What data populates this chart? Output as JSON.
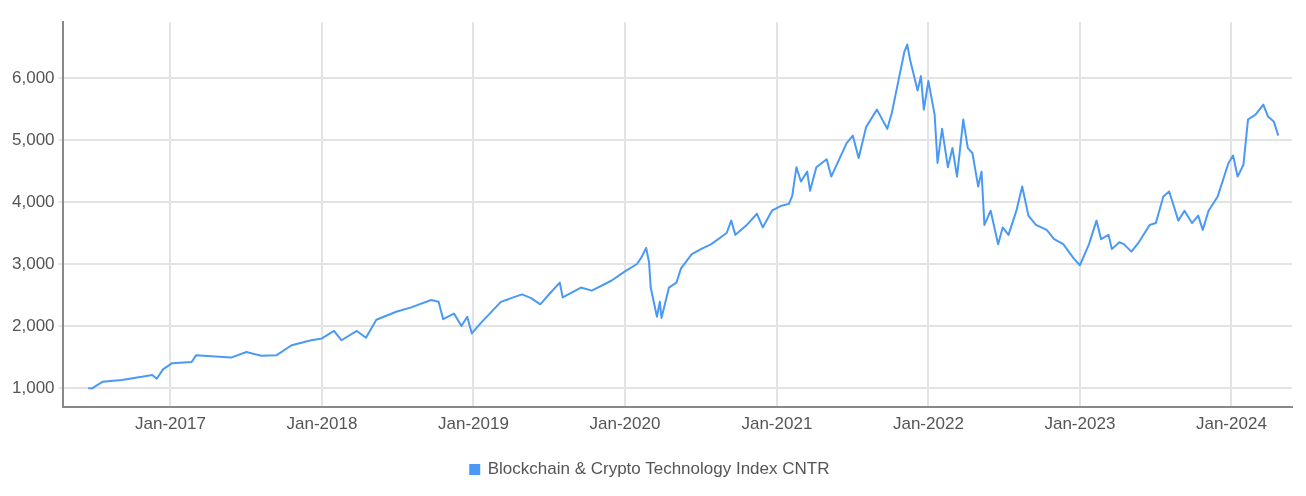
{
  "chart_data": {
    "type": "line",
    "legend": "bottom",
    "grid": true,
    "marker": "none",
    "line_style": "solid",
    "xlim": [
      "2016-04-16",
      "2024-05-26"
    ],
    "xticks": [
      {
        "value": "2017-01-01",
        "label": "Jan-2017"
      },
      {
        "value": "2018-01-01",
        "label": "Jan-2018"
      },
      {
        "value": "2019-01-01",
        "label": "Jan-2019"
      },
      {
        "value": "2020-01-01",
        "label": "Jan-2020"
      },
      {
        "value": "2021-01-01",
        "label": "Jan-2021"
      },
      {
        "value": "2022-01-01",
        "label": "Jan-2022"
      },
      {
        "value": "2023-01-01",
        "label": "Jan-2023"
      },
      {
        "value": "2024-01-01",
        "label": "Jan-2024"
      }
    ],
    "ylim": [
      700,
      6900
    ],
    "yticks": [
      {
        "value": 1000,
        "label": "1,000"
      },
      {
        "value": 2000,
        "label": "2,000"
      },
      {
        "value": 3000,
        "label": "3,000"
      },
      {
        "value": 4000,
        "label": "4,000"
      },
      {
        "value": 5000,
        "label": "5,000"
      },
      {
        "value": 6000,
        "label": "6,000"
      }
    ],
    "x": [
      "2016-06-17",
      "2016-06-25",
      "2016-07-21",
      "2016-09-06",
      "2016-10-24",
      "2016-11-18",
      "2016-11-29",
      "2016-12-14",
      "2017-01-05",
      "2017-02-21",
      "2017-03-04",
      "2017-05-27",
      "2017-07-03",
      "2017-08-08",
      "2017-09-14",
      "2017-10-20",
      "2017-12-06",
      "2018-01-01",
      "2018-01-30",
      "2018-02-17",
      "2018-03-26",
      "2018-04-17",
      "2018-05-12",
      "2018-06-29",
      "2018-08-04",
      "2018-09-21",
      "2018-10-09",
      "2018-10-20",
      "2018-11-15",
      "2018-12-03",
      "2018-12-17",
      "2018-12-28",
      "2019-01-19",
      "2019-03-08",
      "2019-04-28",
      "2019-05-20",
      "2019-06-11",
      "2019-07-06",
      "2019-07-28",
      "2019-08-04",
      "2019-09-17",
      "2019-10-13",
      "2019-11-29",
      "2020-01-01",
      "2020-01-30",
      "2020-02-10",
      "2020-02-21",
      "2020-02-28",
      "2020-03-03",
      "2020-03-18",
      "2020-03-25",
      "2020-03-29",
      "2020-04-16",
      "2020-05-04",
      "2020-05-15",
      "2020-06-10",
      "2020-07-02",
      "2020-07-27",
      "2020-09-02",
      "2020-09-13",
      "2020-09-23",
      "2020-10-19",
      "2020-11-14",
      "2020-11-28",
      "2020-12-20",
      "2021-01-12",
      "2021-01-30",
      "2021-02-07",
      "2021-02-17",
      "2021-02-28",
      "2021-03-15",
      "2021-03-22",
      "2021-04-06",
      "2021-05-01",
      "2021-05-12",
      "2021-06-18",
      "2021-07-03",
      "2021-07-17",
      "2021-08-04",
      "2021-08-30",
      "2021-09-24",
      "2021-10-05",
      "2021-10-16",
      "2021-11-04",
      "2021-11-11",
      "2021-11-18",
      "2021-12-06",
      "2021-12-14",
      "2021-12-21",
      "2022-01-01",
      "2022-01-16",
      "2022-01-23",
      "2022-02-03",
      "2022-02-17",
      "2022-02-28",
      "2022-03-11",
      "2022-03-26",
      "2022-04-06",
      "2022-04-17",
      "2022-05-01",
      "2022-05-09",
      "2022-05-16",
      "2022-05-31",
      "2022-06-18",
      "2022-06-29",
      "2022-07-13",
      "2022-08-01",
      "2022-08-15",
      "2022-08-30",
      "2022-09-17",
      "2022-10-13",
      "2022-10-31",
      "2022-11-22",
      "2022-12-17",
      "2023-01-01",
      "2023-01-23",
      "2023-02-10",
      "2023-02-21",
      "2023-03-11",
      "2023-03-19",
      "2023-04-06",
      "2023-04-17",
      "2023-05-05",
      "2023-05-23",
      "2023-06-18",
      "2023-07-03",
      "2023-07-21",
      "2023-08-04",
      "2023-08-15",
      "2023-08-26",
      "2023-09-10",
      "2023-09-28",
      "2023-10-13",
      "2023-10-24",
      "2023-11-07",
      "2023-11-29",
      "2023-12-25",
      "2024-01-05",
      "2024-01-16",
      "2024-01-30",
      "2024-02-10",
      "2024-02-28",
      "2024-03-18",
      "2024-03-29",
      "2024-04-12",
      "2024-04-23"
    ],
    "series": [
      {
        "name": "Blockchain & Crypto Technology Index CNTR",
        "color": "#4a9af5",
        "values": [
          1000,
          990,
          1100,
          1130,
          1180,
          1210,
          1150,
          1300,
          1400,
          1420,
          1530,
          1490,
          1580,
          1520,
          1530,
          1690,
          1770,
          1800,
          1920,
          1770,
          1920,
          1810,
          2100,
          2230,
          2300,
          2420,
          2390,
          2110,
          2200,
          2000,
          2150,
          1880,
          2050,
          2390,
          2510,
          2450,
          2350,
          2540,
          2700,
          2460,
          2620,
          2570,
          2730,
          2880,
          3000,
          3110,
          3260,
          3030,
          2620,
          2150,
          2390,
          2130,
          2620,
          2700,
          2930,
          3160,
          3240,
          3320,
          3500,
          3700,
          3470,
          3620,
          3810,
          3590,
          3860,
          3940,
          3970,
          4100,
          4560,
          4330,
          4490,
          4180,
          4560,
          4690,
          4410,
          4950,
          5070,
          4710,
          5210,
          5490,
          5180,
          5440,
          5800,
          6420,
          6540,
          6290,
          5800,
          6030,
          5490,
          5950,
          5410,
          4630,
          5180,
          4560,
          4870,
          4410,
          5330,
          4870,
          4790,
          4250,
          4490,
          3630,
          3860,
          3320,
          3590,
          3470,
          3860,
          4250,
          3780,
          3630,
          3550,
          3400,
          3320,
          3090,
          2980,
          3320,
          3700,
          3400,
          3470,
          3240,
          3350,
          3320,
          3200,
          3350,
          3630,
          3660,
          4090,
          4170,
          3940,
          3700,
          3860,
          3660,
          3780,
          3550,
          3860,
          4090,
          4630,
          4750,
          4410,
          4600,
          5330,
          5410,
          5570,
          5380,
          5300,
          5070
        ]
      }
    ]
  }
}
